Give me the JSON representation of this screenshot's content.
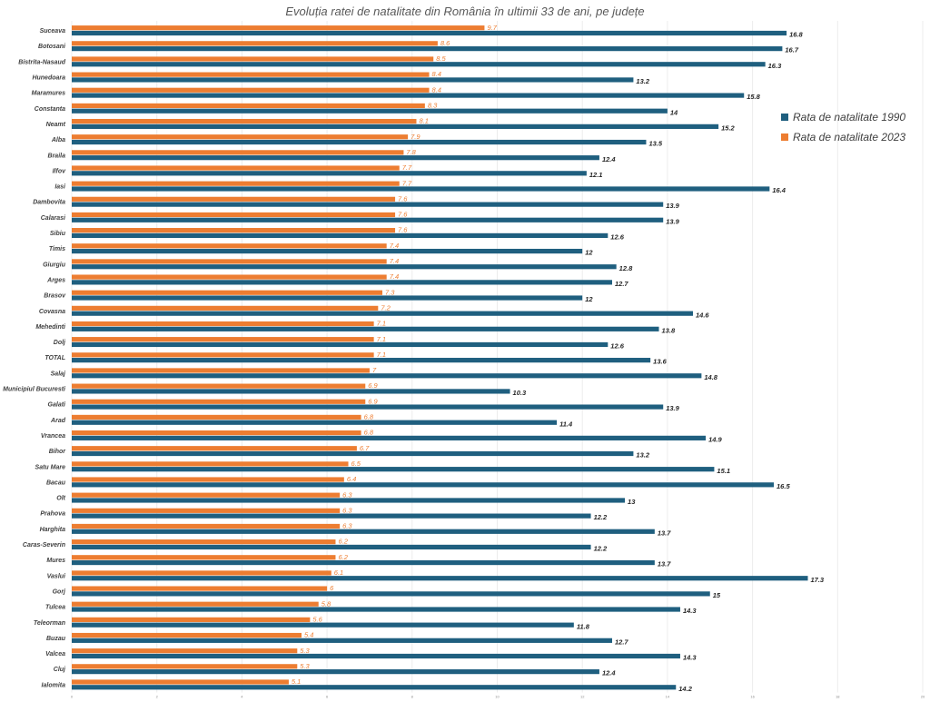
{
  "chart_data": {
    "type": "bar",
    "orientation": "horizontal",
    "title": "Evoluția ratei de natalitate din România în ultimii 33 de ani, pe județe",
    "xlabel": "",
    "ylabel": "",
    "xlim": [
      0,
      20
    ],
    "x_ticks": [
      0,
      2,
      4,
      6,
      8,
      10,
      12,
      14,
      16,
      18,
      20
    ],
    "grid": true,
    "legend_position": "right",
    "categories": [
      "Suceava",
      "Botosani",
      "Bistrita-Nasaud",
      "Hunedoara",
      "Maramures",
      "Constanta",
      "Neamt",
      "Alba",
      "Braila",
      "Ilfov",
      "Iasi",
      "Dambovita",
      "Calarasi",
      "Sibiu",
      "Timis",
      "Giurgiu",
      "Arges",
      "Brasov",
      "Covasna",
      "Mehedinti",
      "Dolj",
      "TOTAL",
      "Salaj",
      "Municipiul Bucuresti",
      "Galati",
      "Arad",
      "Vrancea",
      "Bihor",
      "Satu Mare",
      "Bacau",
      "Olt",
      "Prahova",
      "Harghita",
      "Caras-Severin",
      "Mures",
      "Vaslui",
      "Gorj",
      "Tulcea",
      "Teleorman",
      "Buzau",
      "Valcea",
      "Cluj",
      "Ialomita"
    ],
    "series": [
      {
        "name": "Rata de natalitate 1990",
        "color": "#1f5f7f",
        "values": [
          16.8,
          16.7,
          16.3,
          13.2,
          15.8,
          14,
          15.2,
          13.5,
          12.4,
          12.1,
          16.4,
          13.9,
          13.9,
          12.6,
          12,
          12.8,
          12.7,
          12,
          14.6,
          13.8,
          12.6,
          13.6,
          14.8,
          10.3,
          13.9,
          11.4,
          14.9,
          13.2,
          15.1,
          16.5,
          13,
          12.2,
          13.7,
          12.2,
          13.7,
          17.3,
          15,
          14.3,
          11.8,
          12.7,
          14.3,
          12.4,
          14.2
        ]
      },
      {
        "name": "Rata de natalitate 2023",
        "color": "#ed7d31",
        "values": [
          9.7,
          8.6,
          8.5,
          8.4,
          8.4,
          8.3,
          8.1,
          7.9,
          7.8,
          7.7,
          7.7,
          7.6,
          7.6,
          7.6,
          7.4,
          7.4,
          7.4,
          7.3,
          7.2,
          7.1,
          7.1,
          7.1,
          7,
          6.9,
          6.9,
          6.8,
          6.8,
          6.7,
          6.5,
          6.4,
          6.3,
          6.3,
          6.3,
          6.2,
          6.2,
          6.1,
          6,
          5.8,
          5.6,
          5.4,
          5.3,
          5.3,
          5.1
        ]
      }
    ]
  }
}
